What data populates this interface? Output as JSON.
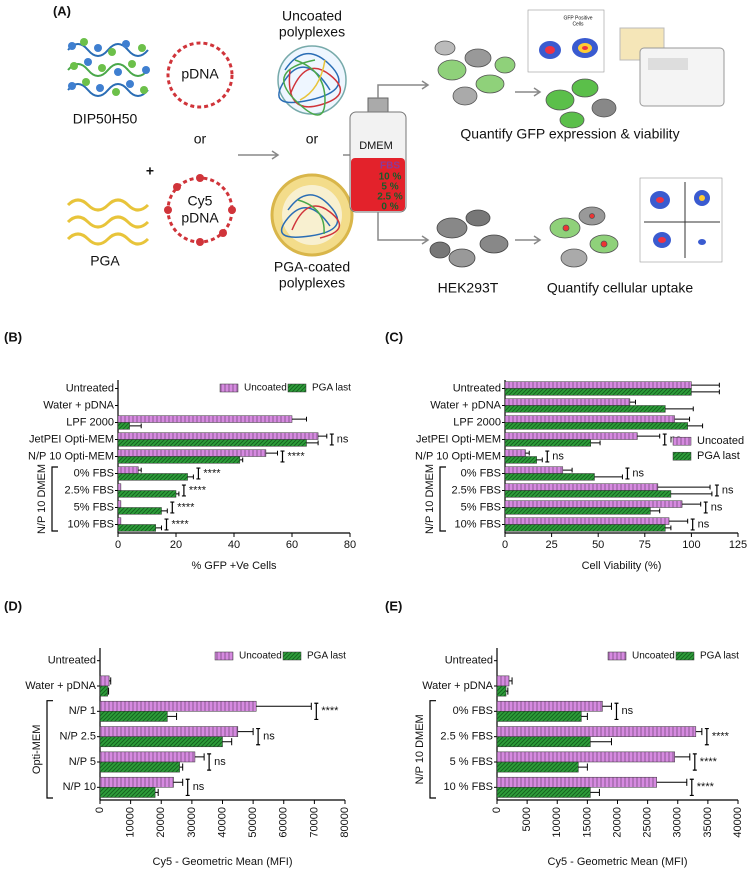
{
  "schematic": {
    "panel": "(A)",
    "polymer": "DIP50H50",
    "plus": "+",
    "coat": "PGA",
    "plasmid": "pDNA",
    "or_1": "or",
    "labeled_plasmid": [
      "Cy5",
      "pDNA"
    ],
    "uncoated": [
      "Uncoated",
      "polyplexes"
    ],
    "or_2": "or",
    "coated": [
      "PGA-coated",
      "polyplexes"
    ],
    "medium": "DMEM",
    "serum": "FBS",
    "serum_levels": [
      "10 %",
      "5 %",
      "2.5 %",
      "0 %"
    ],
    "gfp_inset": [
      "GFP Positive",
      "Cells"
    ],
    "readout_1": "Quantify GFP expression & viability",
    "cell_line": "HEK293T",
    "readout_2": "Quantify cellular uptake"
  },
  "chart_data": [
    {
      "type": "bar",
      "orientation": "horizontal",
      "panel": "(B)",
      "xlabel": "% GFP +Ve Cells",
      "categories": [
        "Untreated",
        "Water + pDNA",
        "LPF 2000",
        "JetPEI Opti-MEM",
        "N/P 10 Opti-MEM",
        "0% FBS",
        "2.5% FBS",
        "5% FBS",
        "10% FBS"
      ],
      "category_groups": [
        null,
        null,
        null,
        null,
        null,
        "N/P 10 DMEM",
        "N/P 10 DMEM",
        "N/P 10 DMEM",
        "N/P 10 DMEM"
      ],
      "series": [
        {
          "name": "Uncoated",
          "color": "#d68ae0",
          "hatch": "vertical",
          "values": [
            0,
            0,
            60,
            69,
            51,
            7,
            1,
            1,
            1
          ],
          "errors": [
            null,
            null,
            5,
            3,
            4,
            1,
            null,
            null,
            null
          ]
        },
        {
          "name": "PGA last",
          "color": "#2e9e3a",
          "hatch": "diagonal",
          "values": [
            0,
            0,
            4,
            65,
            42,
            24,
            20,
            15,
            13
          ],
          "errors": [
            null,
            null,
            4,
            4,
            1,
            2,
            1,
            2,
            2
          ]
        }
      ],
      "annotations": [
        null,
        null,
        null,
        "ns",
        "****",
        "****",
        "****",
        "****",
        "****"
      ],
      "xlim": [
        0,
        80
      ],
      "xticks": [
        0,
        20,
        40,
        60,
        80
      ],
      "legend": "upper right"
    },
    {
      "type": "bar",
      "orientation": "horizontal",
      "panel": "(C)",
      "xlabel": "Cell Viability (%)",
      "categories": [
        "Untreated",
        "Water + pDNA",
        "LPF 2000",
        "JetPEI Opti-MEM",
        "N/P 10 Opti-MEM",
        "0% FBS",
        "2.5% FBS",
        "5% FBS",
        "10% FBS"
      ],
      "category_groups": [
        null,
        null,
        null,
        null,
        null,
        "N/P 10 DMEM",
        "N/P 10 DMEM",
        "N/P 10 DMEM",
        "N/P 10 DMEM"
      ],
      "series": [
        {
          "name": "Uncoated",
          "color": "#d68ae0",
          "hatch": "vertical",
          "values": [
            100,
            67,
            91,
            71,
            11,
            31,
            82,
            95,
            88
          ],
          "errors": [
            15,
            3,
            8,
            12,
            2,
            5,
            28,
            10,
            10
          ]
        },
        {
          "name": "PGA last",
          "color": "#2e9e3a",
          "hatch": "diagonal",
          "values": [
            100,
            86,
            98,
            46,
            17,
            48,
            89,
            78,
            86
          ],
          "errors": [
            15,
            15,
            8,
            5,
            3,
            15,
            22,
            5,
            3
          ]
        }
      ],
      "annotations": [
        null,
        null,
        null,
        "ns",
        "ns",
        "ns",
        "ns",
        "ns",
        "ns"
      ],
      "xlim": [
        0,
        125
      ],
      "xticks": [
        0,
        25,
        50,
        75,
        100,
        125
      ],
      "legend": "center right"
    },
    {
      "type": "bar",
      "orientation": "horizontal",
      "panel": "(D)",
      "xlabel": "Cy5 - Geometric Mean (MFI)",
      "categories": [
        "Untreated",
        "Water + pDNA",
        "N/P 1",
        "N/P 2.5",
        "N/P 5",
        "N/P 10"
      ],
      "category_groups": [
        null,
        null,
        "Opti-MEM",
        "Opti-MEM",
        "Opti-MEM",
        "Opti-MEM"
      ],
      "series": [
        {
          "name": "Uncoated",
          "color": "#d68ae0",
          "hatch": "vertical",
          "values": [
            0,
            3000,
            51000,
            45000,
            31000,
            24000
          ],
          "errors": [
            null,
            500,
            18000,
            5000,
            3000,
            3000
          ]
        },
        {
          "name": "PGA last",
          "color": "#2e9e3a",
          "hatch": "diagonal",
          "values": [
            0,
            2500,
            22000,
            40000,
            26000,
            18000
          ],
          "errors": [
            null,
            300,
            3000,
            3000,
            1000,
            1000
          ]
        }
      ],
      "annotations": [
        null,
        null,
        "****",
        "ns",
        "ns",
        "ns"
      ],
      "xlim": [
        0,
        80000
      ],
      "xticks": [
        0,
        10000,
        20000,
        30000,
        40000,
        50000,
        60000,
        70000,
        80000
      ],
      "legend": "upper right"
    },
    {
      "type": "bar",
      "orientation": "horizontal",
      "panel": "(E)",
      "xlabel": "Cy5 - Geometric Mean (MFI)",
      "categories": [
        "Untreated",
        "Water + pDNA",
        "0% FBS",
        "2.5 % FBS",
        "5 % FBS",
        "10 % FBS"
      ],
      "category_groups": [
        null,
        null,
        "N/P 10 DMEM",
        "N/P 10 DMEM",
        "N/P 10 DMEM",
        "N/P 10 DMEM"
      ],
      "series": [
        {
          "name": "Uncoated",
          "color": "#d68ae0",
          "hatch": "vertical",
          "values": [
            0,
            2000,
            17500,
            33000,
            29500,
            26500
          ],
          "errors": [
            null,
            500,
            1500,
            1000,
            2500,
            5000
          ]
        },
        {
          "name": "PGA last",
          "color": "#2e9e3a",
          "hatch": "diagonal",
          "values": [
            0,
            1500,
            14000,
            15500,
            13500,
            15500
          ],
          "errors": [
            null,
            300,
            1000,
            3500,
            1500,
            1500
          ]
        }
      ],
      "annotations": [
        null,
        null,
        "ns",
        "****",
        "****",
        "****"
      ],
      "xlim": [
        0,
        40000
      ],
      "xticks": [
        0,
        5000,
        10000,
        15000,
        20000,
        25000,
        30000,
        35000,
        40000
      ],
      "legend": "upper right"
    }
  ]
}
